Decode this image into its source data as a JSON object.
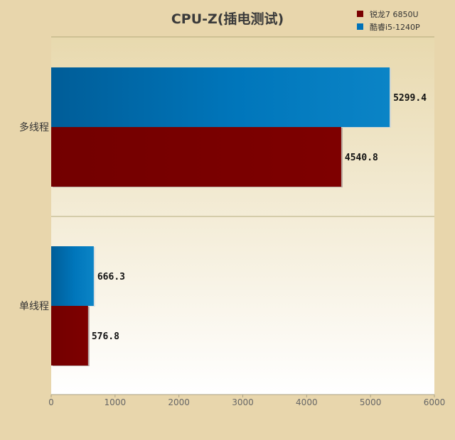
{
  "chart_data": {
    "type": "bar",
    "orientation": "horizontal",
    "title": "CPU-Z(插电测试)",
    "xlabel": "",
    "ylabel": "",
    "categories": [
      "多线程",
      "单线程"
    ],
    "series": [
      {
        "name": "酷睿i5-1240P",
        "color": "#0072b8",
        "values": [
          5299.4,
          666.3
        ]
      },
      {
        "name": "锐龙7 6850U",
        "color": "#7a0000",
        "values": [
          4540.8,
          576.8
        ]
      }
    ],
    "legend_order": [
      "锐龙7 6850U",
      "酷睿i5-1240P"
    ],
    "value_labels": [
      "5299.4",
      "666.3",
      "4540.8",
      "576.8"
    ],
    "xlim": [
      0,
      6000
    ],
    "xticks": [
      "0",
      "1000",
      "2000",
      "3000",
      "4000",
      "5000",
      "6000"
    ],
    "legend_position": "top-right",
    "grid": false
  }
}
